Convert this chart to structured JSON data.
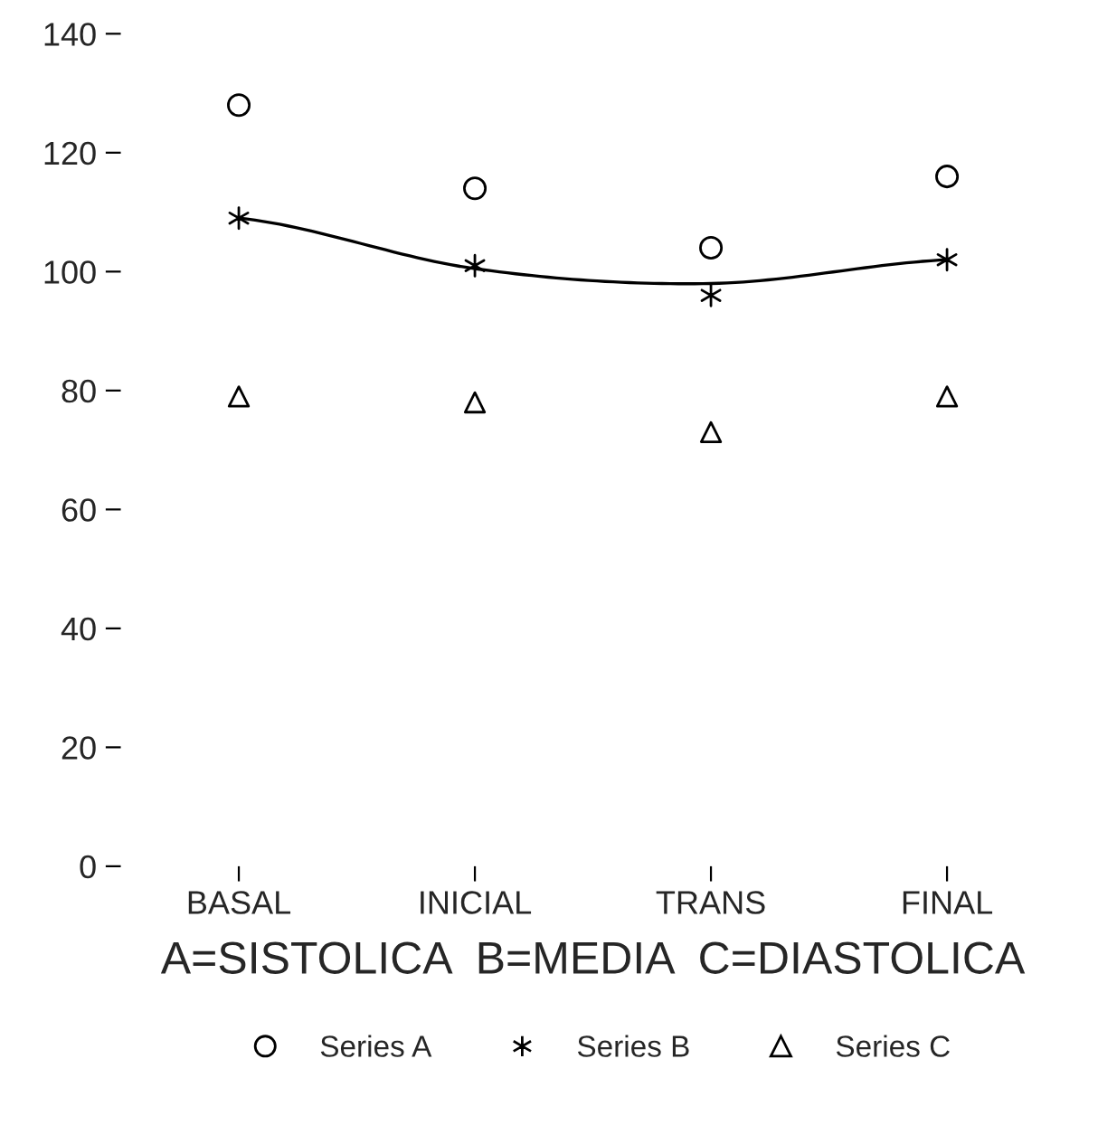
{
  "chart_data": {
    "type": "scatter",
    "categories": [
      "BASAL",
      "INICIAL",
      "TRANS",
      "FINAL"
    ],
    "xlabel": "A=SISTOLICA  B=MEDIA  C=DIASTOLICA",
    "series": [
      {
        "name": "Series A",
        "color": "#000000",
        "marker": "circle",
        "values": [
          128,
          114,
          104,
          116
        ]
      },
      {
        "name": "Series B",
        "color": "#000000",
        "marker": "cross",
        "values": [
          109,
          101,
          96,
          102
        ]
      },
      {
        "name": "Series C",
        "color": "#000000",
        "marker": "triangle",
        "values": [
          79,
          78,
          73,
          79
        ]
      },
      {
        "type": "line",
        "color": "#000000",
        "marker": "none",
        "line_style": "solid",
        "values": [
          109,
          100.5,
          98,
          102
        ]
      }
    ],
    "ylim": [
      0,
      140
    ],
    "yticks": [
      0,
      20,
      40,
      60,
      80,
      100,
      120,
      140
    ],
    "grid": false,
    "legend": "bottom"
  }
}
